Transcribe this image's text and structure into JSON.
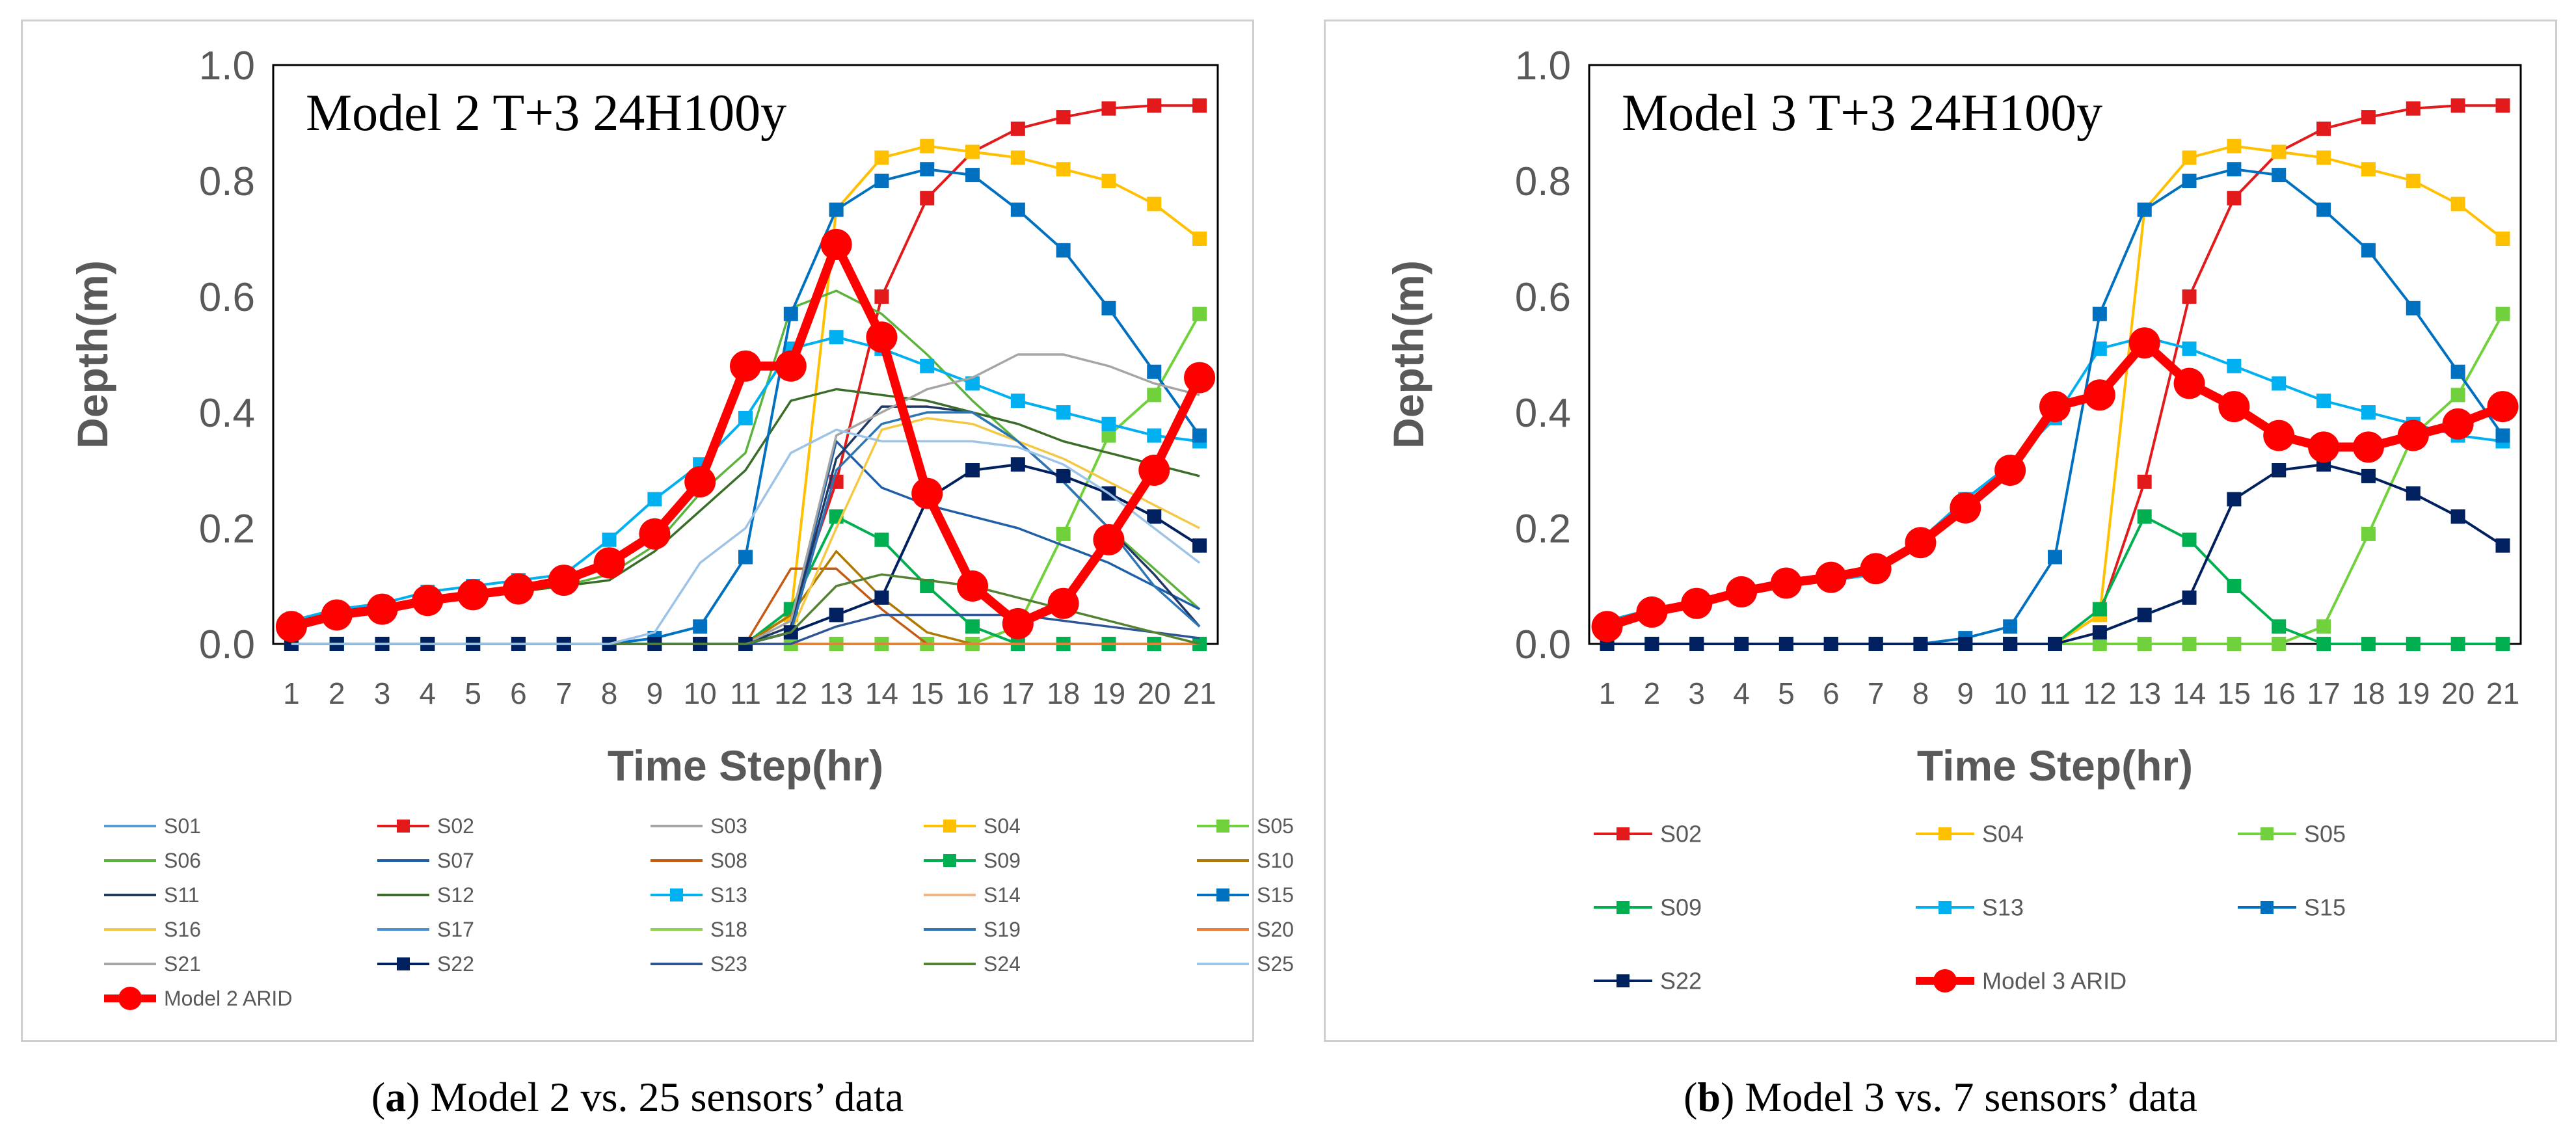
{
  "captions": [
    {
      "letter": "a",
      "pre": "(",
      "post": ") Model 2 vs. 25 sensors’ data"
    },
    {
      "letter": "b",
      "pre": "(",
      "post": ") Model 3 vs. 7 sensors’ data"
    }
  ],
  "chart_data": [
    {
      "type": "line",
      "title": "Model 2 T+3 24H100y",
      "xlabel": "Time Step(hr)",
      "ylabel": "Depth(m)",
      "ylim": [
        0,
        1.0
      ],
      "yticks": [
        "0.0",
        "0.2",
        "0.4",
        "0.6",
        "0.8",
        "1.0"
      ],
      "x": [
        1,
        2,
        3,
        4,
        5,
        6,
        7,
        8,
        9,
        10,
        11,
        12,
        13,
        14,
        15,
        16,
        17,
        18,
        19,
        20,
        21
      ],
      "legend_position": "bottom",
      "grid": false,
      "series": [
        {
          "name": "S01",
          "color": "#5b9bd5",
          "marker": false,
          "values": [
            0,
            0,
            0,
            0,
            0,
            0,
            0,
            0,
            0,
            0,
            0,
            0,
            0,
            0,
            0,
            0,
            0,
            0,
            0,
            0,
            0
          ]
        },
        {
          "name": "S02",
          "color": "#e31a1c",
          "marker": true,
          "values": [
            0,
            0,
            0,
            0,
            0,
            0,
            0,
            0,
            0,
            0,
            0,
            0.05,
            0.28,
            0.6,
            0.77,
            0.85,
            0.89,
            0.91,
            0.925,
            0.93,
            0.93
          ]
        },
        {
          "name": "S03",
          "color": "#a5a5a5",
          "marker": false,
          "values": [
            0,
            0,
            0,
            0,
            0,
            0,
            0,
            0,
            0,
            0,
            0,
            0,
            0,
            0,
            0,
            0,
            0,
            0,
            0,
            0,
            0
          ]
        },
        {
          "name": "S04",
          "color": "#ffc000",
          "marker": true,
          "values": [
            0,
            0,
            0,
            0,
            0,
            0,
            0,
            0,
            0,
            0,
            0,
            0.05,
            0.75,
            0.84,
            0.86,
            0.85,
            0.84,
            0.82,
            0.8,
            0.76,
            0.7
          ]
        },
        {
          "name": "S05",
          "color": "#70d13c",
          "marker": true,
          "values": [
            0,
            0,
            0,
            0,
            0,
            0,
            0,
            0,
            0,
            0,
            0,
            0,
            0,
            0,
            0,
            0,
            0.03,
            0.19,
            0.36,
            0.43,
            0.57
          ]
        },
        {
          "name": "S06",
          "color": "#5bb33b",
          "marker": false,
          "values": [
            0.03,
            0.05,
            0.06,
            0.07,
            0.08,
            0.09,
            0.1,
            0.12,
            0.17,
            0.26,
            0.33,
            0.58,
            0.61,
            0.57,
            0.5,
            0.42,
            0.35,
            0.28,
            0.2,
            0.13,
            0.06
          ]
        },
        {
          "name": "S07",
          "color": "#1f5fa8",
          "marker": false,
          "values": [
            0,
            0,
            0,
            0,
            0,
            0,
            0,
            0,
            0,
            0,
            0,
            0.03,
            0.35,
            0.27,
            0.24,
            0.22,
            0.2,
            0.17,
            0.14,
            0.1,
            0.06
          ]
        },
        {
          "name": "S08",
          "color": "#c55a11",
          "marker": false,
          "values": [
            0,
            0,
            0,
            0,
            0,
            0,
            0,
            0,
            0,
            0,
            0,
            0.13,
            0.13,
            0.06,
            0,
            0,
            0,
            0,
            0,
            0,
            0
          ]
        },
        {
          "name": "S09",
          "color": "#00b050",
          "marker": true,
          "values": [
            0,
            0,
            0,
            0,
            0,
            0,
            0,
            0,
            0,
            0,
            0,
            0.06,
            0.22,
            0.18,
            0.1,
            0.03,
            0,
            0,
            0,
            0,
            0
          ]
        },
        {
          "name": "S10",
          "color": "#b07a00",
          "marker": false,
          "values": [
            0,
            0,
            0,
            0,
            0,
            0,
            0,
            0,
            0,
            0,
            0,
            0.05,
            0.16,
            0.08,
            0.02,
            0,
            0,
            0,
            0,
            0,
            0
          ]
        },
        {
          "name": "S11",
          "color": "#203864",
          "marker": false,
          "values": [
            0,
            0,
            0,
            0,
            0,
            0,
            0,
            0,
            0,
            0,
            0,
            0.03,
            0.32,
            0.41,
            0.41,
            0.4,
            0.35,
            0.28,
            0.2,
            0.12,
            0.03
          ]
        },
        {
          "name": "S12",
          "color": "#3a6e28",
          "marker": false,
          "values": [
            0.03,
            0.05,
            0.06,
            0.07,
            0.08,
            0.09,
            0.1,
            0.11,
            0.16,
            0.23,
            0.3,
            0.42,
            0.44,
            0.43,
            0.42,
            0.4,
            0.38,
            0.35,
            0.33,
            0.31,
            0.29
          ]
        },
        {
          "name": "S13",
          "color": "#00b0f0",
          "marker": true,
          "values": [
            0.04,
            0.06,
            0.07,
            0.09,
            0.1,
            0.11,
            0.12,
            0.18,
            0.25,
            0.31,
            0.39,
            0.51,
            0.53,
            0.51,
            0.48,
            0.45,
            0.42,
            0.4,
            0.38,
            0.36,
            0.35
          ]
        },
        {
          "name": "S14",
          "color": "#f4b183",
          "marker": false,
          "values": [
            0,
            0,
            0,
            0,
            0,
            0,
            0,
            0,
            0,
            0,
            0,
            0,
            0,
            0,
            0,
            0,
            0,
            0,
            0,
            0,
            0
          ]
        },
        {
          "name": "S15",
          "color": "#0070c0",
          "marker": true,
          "values": [
            0,
            0,
            0,
            0,
            0,
            0,
            0,
            0,
            0.01,
            0.03,
            0.15,
            0.57,
            0.75,
            0.8,
            0.82,
            0.81,
            0.75,
            0.68,
            0.58,
            0.47,
            0.36
          ]
        },
        {
          "name": "S16",
          "color": "#f4c842",
          "marker": false,
          "values": [
            0,
            0,
            0,
            0,
            0,
            0,
            0,
            0,
            0,
            0,
            0,
            0.02,
            0.2,
            0.37,
            0.39,
            0.38,
            0.35,
            0.32,
            0.28,
            0.24,
            0.2
          ]
        },
        {
          "name": "S17",
          "color": "#4a8fd4",
          "marker": false,
          "values": [
            0,
            0,
            0,
            0,
            0,
            0,
            0,
            0,
            0,
            0,
            0,
            0,
            0,
            0,
            0,
            0,
            0,
            0,
            0,
            0,
            0
          ]
        },
        {
          "name": "S18",
          "color": "#92d050",
          "marker": false,
          "values": [
            0,
            0,
            0,
            0,
            0,
            0,
            0,
            0,
            0,
            0,
            0,
            0,
            0,
            0,
            0,
            0,
            0,
            0,
            0,
            0,
            0
          ]
        },
        {
          "name": "S19",
          "color": "#2e75b6",
          "marker": false,
          "values": [
            0,
            0,
            0,
            0,
            0,
            0,
            0,
            0,
            0,
            0,
            0,
            0.02,
            0.3,
            0.38,
            0.4,
            0.4,
            0.35,
            0.28,
            0.2,
            0.1,
            0.03
          ]
        },
        {
          "name": "S20",
          "color": "#ed7d31",
          "marker": false,
          "values": [
            0,
            0,
            0,
            0,
            0,
            0,
            0,
            0,
            0,
            0,
            0,
            0,
            0,
            0,
            0,
            0,
            0,
            0,
            0,
            0,
            0
          ]
        },
        {
          "name": "S21",
          "color": "#a5a5a5",
          "marker": false,
          "values": [
            0,
            0,
            0,
            0,
            0,
            0,
            0,
            0,
            0,
            0,
            0,
            0.04,
            0.36,
            0.4,
            0.44,
            0.46,
            0.5,
            0.5,
            0.48,
            0.45,
            0.43
          ]
        },
        {
          "name": "S22",
          "color": "#002060",
          "marker": true,
          "values": [
            0,
            0,
            0,
            0,
            0,
            0,
            0,
            0,
            0,
            0,
            0,
            0.02,
            0.05,
            0.08,
            0.25,
            0.3,
            0.31,
            0.29,
            0.26,
            0.22,
            0.17
          ]
        },
        {
          "name": "S23",
          "color": "#2f5597",
          "marker": false,
          "values": [
            0,
            0,
            0,
            0,
            0,
            0,
            0,
            0,
            0,
            0,
            0,
            0,
            0.03,
            0.05,
            0.05,
            0.05,
            0.05,
            0.04,
            0.03,
            0.02,
            0.01
          ]
        },
        {
          "name": "S24",
          "color": "#548235",
          "marker": false,
          "values": [
            0,
            0,
            0,
            0,
            0,
            0,
            0,
            0,
            0,
            0,
            0,
            0.02,
            0.1,
            0.12,
            0.11,
            0.1,
            0.08,
            0.06,
            0.04,
            0.02,
            0
          ]
        },
        {
          "name": "S25",
          "color": "#9dc3e6",
          "marker": false,
          "values": [
            0,
            0,
            0,
            0,
            0,
            0,
            0,
            0,
            0.02,
            0.14,
            0.2,
            0.33,
            0.37,
            0.35,
            0.35,
            0.35,
            0.34,
            0.31,
            0.26,
            0.2,
            0.14
          ]
        },
        {
          "name": "Model 2 ARID",
          "color": "#ff0000",
          "marker": true,
          "bold": true,
          "values": [
            0.03,
            0.05,
            0.06,
            0.075,
            0.085,
            0.095,
            0.11,
            0.14,
            0.19,
            0.28,
            0.48,
            0.48,
            0.69,
            0.53,
            0.26,
            0.1,
            0.035,
            0.07,
            0.18,
            0.3,
            0.46
          ]
        }
      ]
    },
    {
      "type": "line",
      "title": "Model 3 T+3 24H100y",
      "xlabel": "Time Step(hr)",
      "ylabel": "Depth(m)",
      "ylim": [
        0,
        1.0
      ],
      "yticks": [
        "0.0",
        "0.2",
        "0.4",
        "0.6",
        "0.8",
        "1.0"
      ],
      "x": [
        1,
        2,
        3,
        4,
        5,
        6,
        7,
        8,
        9,
        10,
        11,
        12,
        13,
        14,
        15,
        16,
        17,
        18,
        19,
        20,
        21
      ],
      "legend_position": "bottom",
      "grid": false,
      "series": [
        {
          "name": "S02",
          "color": "#e31a1c",
          "marker": true,
          "values": [
            0,
            0,
            0,
            0,
            0,
            0,
            0,
            0,
            0,
            0,
            0,
            0.05,
            0.28,
            0.6,
            0.77,
            0.85,
            0.89,
            0.91,
            0.925,
            0.93,
            0.93
          ]
        },
        {
          "name": "S04",
          "color": "#ffc000",
          "marker": true,
          "values": [
            0,
            0,
            0,
            0,
            0,
            0,
            0,
            0,
            0,
            0,
            0,
            0.05,
            0.75,
            0.84,
            0.86,
            0.85,
            0.84,
            0.82,
            0.8,
            0.76,
            0.7
          ]
        },
        {
          "name": "S05",
          "color": "#70d13c",
          "marker": true,
          "values": [
            0,
            0,
            0,
            0,
            0,
            0,
            0,
            0,
            0,
            0,
            0,
            0,
            0,
            0,
            0,
            0,
            0.03,
            0.19,
            0.36,
            0.43,
            0.57
          ]
        },
        {
          "name": "S09",
          "color": "#00b050",
          "marker": true,
          "values": [
            0,
            0,
            0,
            0,
            0,
            0,
            0,
            0,
            0,
            0,
            0,
            0.06,
            0.22,
            0.18,
            0.1,
            0.03,
            0,
            0,
            0,
            0,
            0
          ]
        },
        {
          "name": "S13",
          "color": "#00b0f0",
          "marker": true,
          "values": [
            0.04,
            0.06,
            0.07,
            0.09,
            0.1,
            0.11,
            0.12,
            0.18,
            0.25,
            0.31,
            0.39,
            0.51,
            0.53,
            0.51,
            0.48,
            0.45,
            0.42,
            0.4,
            0.38,
            0.36,
            0.35
          ]
        },
        {
          "name": "S15",
          "color": "#0070c0",
          "marker": true,
          "values": [
            0,
            0,
            0,
            0,
            0,
            0,
            0,
            0,
            0.01,
            0.03,
            0.15,
            0.57,
            0.75,
            0.8,
            0.82,
            0.81,
            0.75,
            0.68,
            0.58,
            0.47,
            0.36
          ]
        },
        {
          "name": "S22",
          "color": "#002060",
          "marker": true,
          "values": [
            0,
            0,
            0,
            0,
            0,
            0,
            0,
            0,
            0,
            0,
            0,
            0.02,
            0.05,
            0.08,
            0.25,
            0.3,
            0.31,
            0.29,
            0.26,
            0.22,
            0.17
          ]
        },
        {
          "name": "Model 3 ARID",
          "color": "#ff0000",
          "marker": true,
          "bold": true,
          "values": [
            0.03,
            0.055,
            0.07,
            0.09,
            0.105,
            0.115,
            0.13,
            0.175,
            0.235,
            0.3,
            0.41,
            0.43,
            0.52,
            0.45,
            0.41,
            0.36,
            0.34,
            0.34,
            0.36,
            0.38,
            0.41
          ]
        }
      ]
    }
  ]
}
